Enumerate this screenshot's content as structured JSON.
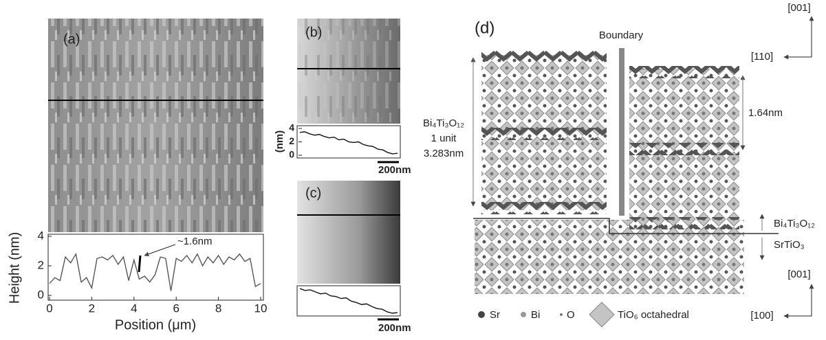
{
  "panels": {
    "a": "(a)",
    "b": "(b)",
    "c": "(c)",
    "d": "(d)"
  },
  "chart_data": [
    {
      "type": "line",
      "x_label": "Position (μm)",
      "y_label": "Height (nm)",
      "annotation": "~1.6nm",
      "x": [
        0,
        0.25,
        0.5,
        0.75,
        1,
        1.25,
        1.5,
        1.75,
        2,
        2.25,
        2.5,
        2.75,
        3,
        3.25,
        3.5,
        3.75,
        4,
        4.25,
        4.5,
        4.75,
        5,
        5.25,
        5.5,
        5.75,
        6,
        6.25,
        6.5,
        6.75,
        7,
        7.25,
        7.5,
        7.75,
        8,
        8.25,
        8.5,
        8.75,
        9,
        9.25,
        9.5,
        9.75,
        10
      ],
      "values": [
        0.8,
        1.2,
        1.0,
        2.6,
        2.2,
        2.8,
        0.9,
        1.2,
        0.5,
        2.5,
        2.6,
        2.4,
        2.7,
        2.1,
        2.6,
        1.0,
        2.4,
        1.1,
        1.3,
        0.9,
        1.4,
        2.6,
        2.5,
        0.3,
        2.5,
        2.3,
        2.7,
        2.2,
        2.8,
        2.0,
        2.6,
        2.2,
        2.7,
        2.1,
        2.6,
        2.4,
        2.8,
        2.3,
        2.5,
        0.6,
        0.8
      ],
      "xlim": [
        0,
        10
      ],
      "ylim": [
        0,
        4
      ],
      "xticks": [
        0,
        2,
        4,
        6,
        8,
        10
      ],
      "yticks": [
        0,
        2,
        4
      ],
      "color": "#555555"
    },
    {
      "type": "line",
      "y_label": "(nm)",
      "scale_bar": "200nm",
      "values": [
        3.4,
        3.5,
        3.2,
        3.0,
        3.1,
        2.8,
        2.6,
        2.7,
        2.3,
        2.4,
        2.0,
        1.9,
        2.0,
        1.6,
        1.4,
        1.3,
        0.9,
        0.8,
        0.4,
        0.2,
        0.3
      ],
      "ylim": [
        0,
        4
      ],
      "yticks": [
        0,
        2,
        4
      ],
      "color": "#111111"
    },
    {
      "type": "line",
      "scale_bar": "200nm",
      "values": [
        4.0,
        3.7,
        3.8,
        3.5,
        3.2,
        3.3,
        2.9,
        2.8,
        2.5,
        2.6,
        2.1,
        1.9,
        1.6,
        1.7,
        1.3,
        1.0,
        0.9,
        0.5,
        0.3,
        0.4
      ],
      "color": "#111111"
    }
  ],
  "diagram": {
    "boundary": "Boundary",
    "axes_top": {
      "up": "[001]",
      "left": "[110]"
    },
    "axes_bottom": {
      "up": "[001]",
      "left": "[100]"
    },
    "film_label": "Bi₄Ti₃O₁₂",
    "unit_label": "1 unit",
    "unit_size": "3.283nm",
    "half_size": "1.64nm",
    "layer_film": "Bi₄Ti₃O₁₂",
    "layer_substrate": "SrTiO₃",
    "legend": [
      "Sr",
      "Bi",
      "O",
      "TiO₆ octahedral"
    ]
  }
}
